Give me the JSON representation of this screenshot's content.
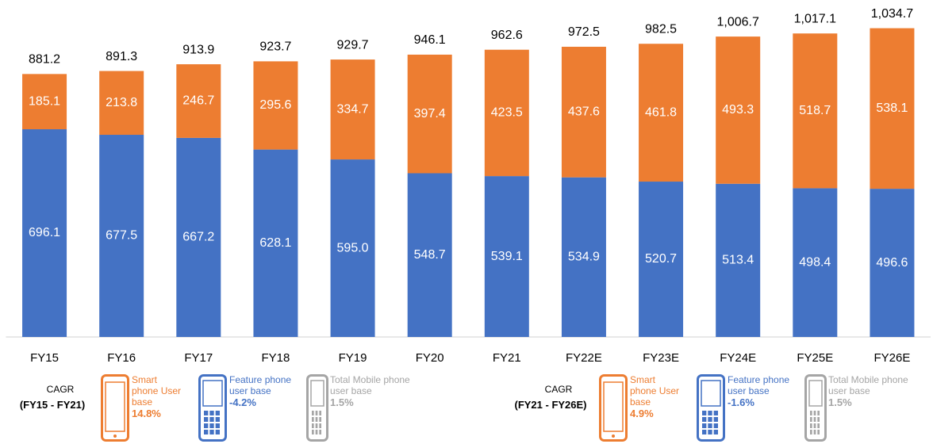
{
  "chart_data": {
    "type": "stacked_bar",
    "categories": [
      "FY15",
      "FY16",
      "FY17",
      "FY18",
      "FY19",
      "FY20",
      "FY21",
      "FY22E",
      "FY23E",
      "FY24E",
      "FY25E",
      "FY26E"
    ],
    "ylim": [
      0,
      1100
    ],
    "series": [
      {
        "name": "Feature phone user base",
        "color": "#4472C4",
        "values": [
          696.1,
          677.5,
          667.2,
          628.1,
          595.0,
          548.7,
          539.1,
          534.9,
          520.7,
          513.4,
          498.4,
          496.6
        ],
        "value_labels": [
          "696.1",
          "677.5",
          "667.2",
          "628.1",
          "595.0",
          "548.7",
          "539.1",
          "534.9",
          "520.7",
          "513.4",
          "498.4",
          "496.6"
        ]
      },
      {
        "name": "Smart phone User base",
        "color": "#ED7D31",
        "values": [
          185.1,
          213.8,
          246.7,
          295.6,
          334.7,
          397.4,
          423.5,
          437.6,
          461.8,
          493.3,
          518.7,
          538.1
        ]
      }
    ],
    "totals": {
      "name": "Total Mobile phone user base",
      "color": "#A5A5A5",
      "values": [
        881.2,
        891.3,
        913.9,
        923.7,
        929.7,
        946.1,
        962.6,
        972.5,
        982.5,
        1006.7,
        1017.1,
        1034.7
      ],
      "value_labels": [
        "881.2",
        "891.3",
        "913.9",
        "923.7",
        "929.7",
        "946.1",
        "962.6",
        "972.5",
        "982.5",
        "1,006.7",
        "1,017.1",
        "1,034.7"
      ]
    },
    "cagr_panels": [
      {
        "title": "CAGR",
        "period": "(FY15 - FY21)",
        "smart": 14.8,
        "feature": -4.2,
        "total": 1.5,
        "value_labels": {
          "smart": "14.8%",
          "feature": "-4.2%",
          "total": "1.5%"
        }
      },
      {
        "title": "CAGR",
        "period": "(FY21 - FY26E)",
        "smart": 4.9,
        "feature": -1.6,
        "total": 1.5,
        "value_labels": {
          "smart": "4.9%",
          "feature": "-1.6%",
          "total": "1.5%"
        }
      }
    ]
  }
}
